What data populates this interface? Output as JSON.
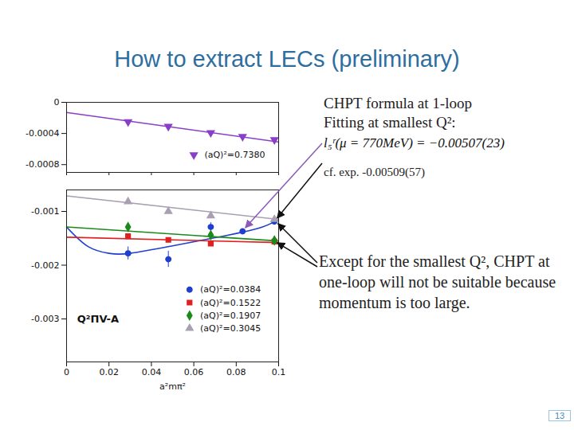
{
  "slide": {
    "title": "How to extract LECs (preliminary)",
    "text_top": [
      "CHPT formula at 1-loop",
      "Fitting at smallest Q²:"
    ],
    "formula": "l₅ʳ(μ = 770MeV) = −0.00507(23)",
    "comparison": "cf. exp. -0.00509(57)",
    "text_bottom": "Except for the smallest Q², CHPT at one-loop will not be suitable because momentum is too large.",
    "page": "13"
  },
  "chart_data": [
    {
      "type": "scatter",
      "xlim": [
        0,
        0.1
      ],
      "xticks": [
        0,
        0.02,
        0.04,
        0.06,
        0.08,
        0.1
      ],
      "ylim": [
        -0.0009,
        0
      ],
      "yticks": [
        0,
        -0.0004,
        -0.0008
      ],
      "tick_labels": "y",
      "series": [
        {
          "name": "(aQ)²=0.7380",
          "color": "#8a3fc8",
          "marker": "triangle-down",
          "x": [
            0.029,
            0.048,
            0.068,
            0.083,
            0.098
          ],
          "values": [
            -0.00025,
            -0.00031,
            -0.00039,
            -0.00044,
            -0.00048
          ],
          "errors": [
            1e-05,
            1e-05,
            1e-05,
            1e-05,
            1e-05
          ],
          "fit": {
            "x": [
              0,
              0.1
            ],
            "values": [
              -0.00013,
              -0.00051
            ]
          }
        }
      ]
    },
    {
      "type": "scatter",
      "xlabel": "a²mπ²",
      "ylabel": "Q²ΠV-A",
      "xlim": [
        0,
        0.1
      ],
      "xticks": [
        0,
        0.02,
        0.04,
        0.06,
        0.08,
        0.1
      ],
      "ylim": [
        -0.0038,
        -0.0006
      ],
      "yticks": [
        -0.001,
        -0.002,
        -0.003
      ],
      "series": [
        {
          "name": "(aQ)²=0.0384",
          "color": "#1f3fd0",
          "marker": "circle",
          "x": [
            0.029,
            0.048,
            0.068,
            0.083,
            0.098
          ],
          "values": [
            -0.00178,
            -0.00189,
            -0.00129,
            -0.00137,
            -0.00119
          ],
          "errors": [
            0.00012,
            0.00015,
            8e-05,
            4e-05,
            4e-05
          ],
          "fit": {
            "x": [
              0,
              0.01,
              0.02,
              0.03,
              0.05,
              0.07,
              0.09,
              0.1
            ],
            "values": [
              -0.00129,
              -0.00165,
              -0.00178,
              -0.00178,
              -0.00164,
              -0.00149,
              -0.00132,
              -0.00115
            ]
          }
        },
        {
          "name": "(aQ)²=0.1522",
          "color": "#e02020",
          "marker": "square",
          "x": [
            0.029,
            0.048,
            0.068,
            0.098
          ],
          "values": [
            -0.00146,
            -0.00153,
            -0.0016,
            -0.00156
          ],
          "errors": [
            3e-05,
            3e-05,
            3e-05,
            2e-05
          ],
          "fit": {
            "x": [
              0,
              0.1
            ],
            "values": [
              -0.00148,
              -0.00158
            ]
          }
        },
        {
          "name": "(aQ)²=0.1907",
          "color": "#1a8a1a",
          "marker": "diamond",
          "x": [
            0.029,
            0.068,
            0.098
          ],
          "values": [
            -0.00129,
            -0.00144,
            -0.00154
          ],
          "errors": [
            3e-05,
            3e-05,
            2e-05
          ],
          "fit": {
            "x": [
              0,
              0.1
            ],
            "values": [
              -0.00129,
              -0.00155
            ]
          }
        },
        {
          "name": "(aQ)²=0.3045",
          "color": "#a8a0b0",
          "marker": "triangle",
          "x": [
            0.029,
            0.048,
            0.068,
            0.098
          ],
          "values": [
            -0.00082,
            -0.001,
            -0.00108,
            -0.00115
          ],
          "errors": [
            2e-05,
            2e-05,
            2e-05,
            2e-05
          ],
          "fit": {
            "x": [
              0,
              0.1
            ],
            "values": [
              -0.00071,
              -0.00115
            ]
          }
        }
      ]
    }
  ]
}
